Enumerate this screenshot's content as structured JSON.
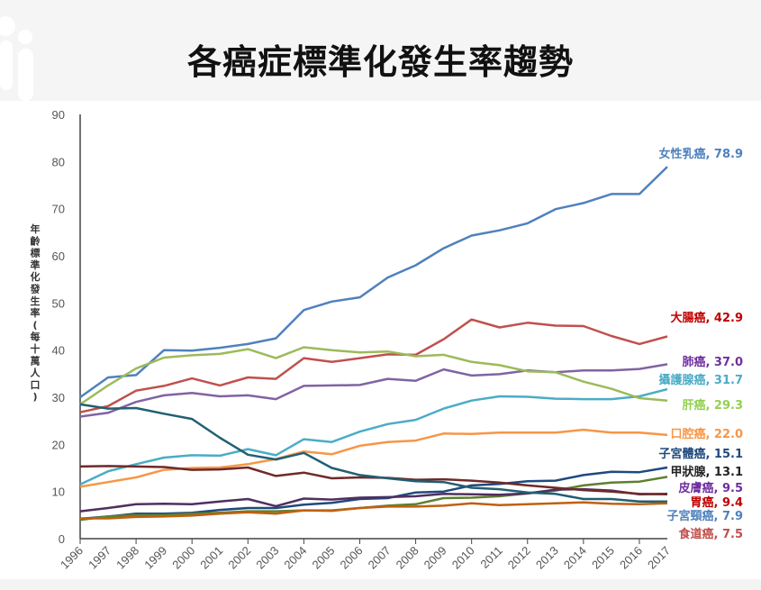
{
  "title": "各癌症標準化發生率趨勢",
  "chart_data": {
    "type": "line",
    "title": "各癌症標準化發生率趨勢",
    "xlabel": "",
    "ylabel": "年齡標準化發生率(每十萬人口)",
    "ylim": [
      0,
      90
    ],
    "yticks": [
      0,
      10,
      20,
      30,
      40,
      50,
      60,
      70,
      80,
      90
    ],
    "grid": false,
    "x": [
      1996,
      1997,
      1998,
      1999,
      2000,
      2001,
      2002,
      2003,
      2004,
      2005,
      2006,
      2007,
      2008,
      2009,
      2010,
      2011,
      2012,
      2013,
      2014,
      2015,
      2016,
      2017
    ],
    "series": [
      {
        "name": "女性乳癌",
        "label": "女性乳癌, 78.9",
        "color": "#4f81bd",
        "label_color": "#4f81bd",
        "values": [
          30.0,
          34.2,
          34.7,
          40.0,
          39.9,
          40.5,
          41.3,
          42.5,
          48.5,
          50.3,
          51.2,
          55.4,
          58.0,
          61.6,
          64.3,
          65.4,
          66.9,
          69.9,
          71.2,
          73.1,
          73.1,
          78.9
        ]
      },
      {
        "name": "大腸癌",
        "label": "大腸癌, 42.9",
        "color": "#c0504d",
        "label_color": "#c00000",
        "values": [
          26.8,
          28.1,
          31.4,
          32.4,
          34.0,
          32.5,
          34.2,
          33.9,
          38.3,
          37.5,
          38.3,
          39.1,
          39.0,
          42.3,
          46.5,
          44.8,
          45.8,
          45.2,
          45.1,
          43.0,
          41.3,
          42.9
        ]
      },
      {
        "name": "肺癌",
        "label": "肺癌, 37.0",
        "color": "#8064a2",
        "label_color": "#7030a0",
        "values": [
          25.9,
          26.7,
          29.0,
          30.4,
          30.9,
          30.2,
          30.4,
          29.6,
          32.4,
          32.5,
          32.6,
          33.9,
          33.5,
          35.9,
          34.6,
          34.9,
          35.7,
          35.3,
          35.7,
          35.7,
          36.0,
          37.0
        ]
      },
      {
        "name": "攝護腺癌",
        "label": "攝護腺癌, 31.7",
        "color": "#4bacc6",
        "label_color": "#4bacc6",
        "values": [
          11.5,
          14.3,
          15.8,
          17.2,
          17.7,
          17.6,
          19.0,
          17.7,
          21.1,
          20.5,
          22.7,
          24.3,
          25.2,
          27.6,
          29.3,
          30.2,
          30.1,
          29.7,
          29.6,
          29.6,
          30.2,
          31.7
        ]
      },
      {
        "name": "肝癌",
        "label": "肝癌, 29.3",
        "color": "#9bbb59",
        "label_color": "#92d050",
        "values": [
          28.5,
          32.5,
          36.1,
          38.4,
          38.9,
          39.2,
          40.2,
          38.3,
          40.6,
          40.0,
          39.5,
          39.7,
          38.7,
          39.0,
          37.5,
          36.8,
          35.5,
          35.3,
          33.3,
          31.8,
          29.8,
          29.3
        ]
      },
      {
        "name": "口腔癌",
        "label": "口腔癌, 22.0",
        "color": "#f79646",
        "label_color": "#f79646",
        "values": [
          11.0,
          12.0,
          13.0,
          14.6,
          15.0,
          15.1,
          15.8,
          16.9,
          18.5,
          17.9,
          19.7,
          20.5,
          20.8,
          22.3,
          22.2,
          22.5,
          22.5,
          22.5,
          23.1,
          22.5,
          22.5,
          22.0
        ]
      },
      {
        "name": "子宮體癌",
        "label": "子宮體癌, 15.1",
        "color": "#1f497d",
        "label_color": "#1f497d",
        "values": [
          4.2,
          4.7,
          5.3,
          5.3,
          5.5,
          6.1,
          6.5,
          6.5,
          7.2,
          7.6,
          8.4,
          8.6,
          9.8,
          10.0,
          11.3,
          11.6,
          12.2,
          12.3,
          13.5,
          14.2,
          14.1,
          15.1
        ]
      },
      {
        "name": "甲狀腺",
        "label": "甲狀腺, 13.1",
        "color": "#5f7f2f",
        "label_color": "#222222",
        "values": [
          4.0,
          4.7,
          5.0,
          5.0,
          5.3,
          5.5,
          5.8,
          5.8,
          6.0,
          6.0,
          6.5,
          7.0,
          7.3,
          8.6,
          8.7,
          9.0,
          9.6,
          10.2,
          11.3,
          11.9,
          12.1,
          13.1
        ]
      },
      {
        "name": "皮膚癌",
        "label": "皮膚癌, 9.5",
        "color": "#4f2f5f",
        "label_color": "#7030a0",
        "values": [
          5.8,
          6.5,
          7.3,
          7.4,
          7.3,
          7.9,
          8.4,
          6.9,
          8.5,
          8.3,
          8.7,
          8.8,
          9.0,
          9.5,
          9.4,
          9.3,
          9.6,
          10.4,
          10.5,
          10.2,
          9.4,
          9.5
        ]
      },
      {
        "name": "胃癌",
        "label": "胃癌, 9.4",
        "color": "#6f2a2a",
        "label_color": "#c00000",
        "values": [
          15.3,
          15.4,
          15.3,
          15.2,
          14.6,
          14.7,
          15.1,
          13.3,
          14.0,
          12.8,
          13.0,
          12.9,
          12.5,
          12.6,
          12.3,
          11.9,
          11.3,
          10.8,
          10.3,
          10.0,
          9.5,
          9.4
        ]
      },
      {
        "name": "子宮頸癌",
        "label": "子宮頸癌, 7.9",
        "color": "#215f73",
        "label_color": "#4f81bd",
        "values": [
          28.5,
          27.6,
          27.7,
          26.5,
          25.4,
          21.4,
          17.8,
          16.8,
          18.2,
          15.0,
          13.5,
          12.8,
          12.2,
          12.0,
          10.8,
          10.5,
          9.8,
          9.5,
          8.4,
          8.4,
          7.9,
          7.9
        ]
      },
      {
        "name": "食道癌",
        "label": "食道癌, 7.5",
        "color": "#c0600f",
        "label_color": "#c0504d",
        "values": [
          4.3,
          4.3,
          4.6,
          4.7,
          4.9,
          5.3,
          5.6,
          5.3,
          6.0,
          5.9,
          6.5,
          6.8,
          6.8,
          7.0,
          7.5,
          7.1,
          7.3,
          7.5,
          7.7,
          7.4,
          7.3,
          7.5
        ]
      }
    ]
  }
}
